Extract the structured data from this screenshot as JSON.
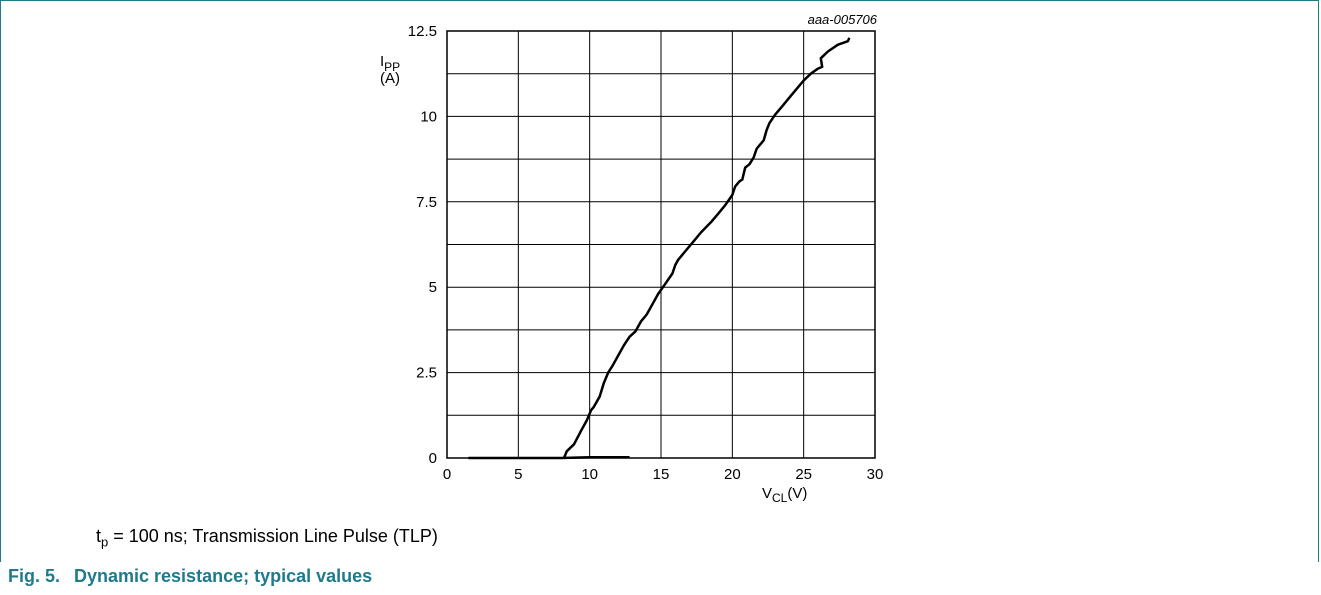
{
  "chart_data": {
    "type": "line",
    "figure_id": "aaa-005706",
    "ylabel": {
      "main": "I",
      "sub": "PP",
      "unit": "(A)"
    },
    "xlabel": {
      "main": "V",
      "sub": "CL",
      "unit": "(V)"
    },
    "xlim": [
      0,
      30
    ],
    "ylim": [
      0,
      12.5
    ],
    "x_ticks": [
      0,
      5,
      10,
      15,
      20,
      25,
      30
    ],
    "y_ticks": [
      0,
      2.5,
      5,
      7.5,
      10,
      12.5
    ],
    "x_tick_labels": [
      "0",
      "5",
      "10",
      "15",
      "20",
      "25",
      "30"
    ],
    "y_tick_labels": [
      "0",
      "2.5",
      "5",
      "7.5",
      "10",
      "12.5"
    ],
    "grid": true,
    "series": [
      {
        "x": [
          1.5,
          5,
          8,
          10,
          12.8
        ],
        "y": [
          0,
          0,
          0,
          0.02,
          0.02
        ]
      },
      {
        "x": [
          8.2,
          8.3,
          8.4,
          8.9,
          9.4,
          9.8,
          10.1,
          10.3,
          10.7,
          11.0,
          11.3,
          11.6,
          12.0,
          12.4,
          12.8,
          13.2,
          13.6,
          14.0,
          14.4,
          14.8,
          15.3,
          15.8,
          16.0,
          16.2,
          16.6,
          17.2,
          17.8,
          18.5,
          19.0,
          19.5,
          20.0,
          20.2,
          20.5,
          20.7,
          20.9,
          21.2,
          21.5,
          21.7,
          21.9,
          22.2,
          22.4,
          22.6,
          23.0,
          23.5,
          24.0,
          24.5,
          25.0,
          25.5,
          26.0,
          26.3,
          26.2,
          26.7,
          27.4,
          28.1,
          28.2
        ],
        "y": [
          0,
          0.1,
          0.2,
          0.4,
          0.8,
          1.1,
          1.4,
          1.5,
          1.8,
          2.2,
          2.5,
          2.7,
          3.0,
          3.3,
          3.55,
          3.7,
          4.0,
          4.2,
          4.5,
          4.8,
          5.1,
          5.4,
          5.65,
          5.8,
          6.0,
          6.3,
          6.6,
          6.9,
          7.15,
          7.4,
          7.7,
          7.95,
          8.1,
          8.15,
          8.5,
          8.6,
          8.8,
          9.05,
          9.15,
          9.3,
          9.6,
          9.8,
          10.05,
          10.3,
          10.55,
          10.8,
          11.05,
          11.25,
          11.4,
          11.45,
          11.7,
          11.9,
          12.1,
          12.2,
          12.3
        ]
      }
    ]
  },
  "condition_note": {
    "t": "t",
    "t_sub": "p",
    "rest": " = 100 ns; Transmission Line Pulse (TLP)"
  },
  "caption": {
    "number": "Fig. 5.",
    "text": "Dynamic resistance; typical values"
  }
}
